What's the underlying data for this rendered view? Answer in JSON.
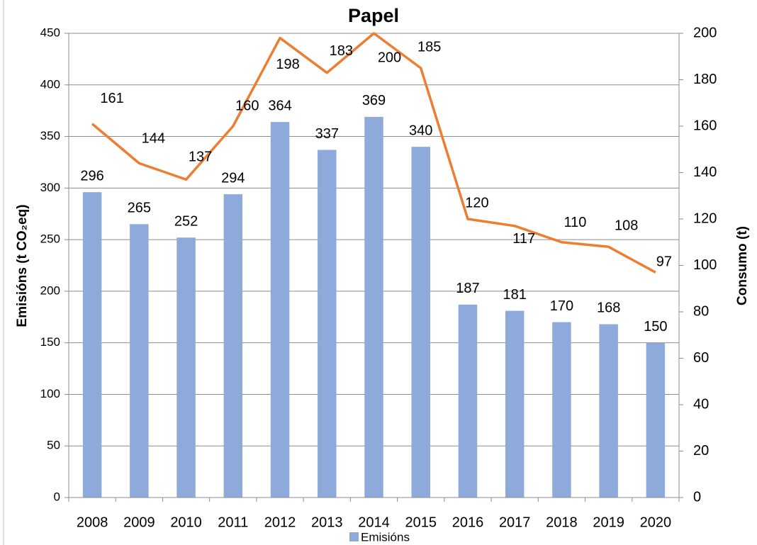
{
  "chart_data": {
    "type": "bar_line",
    "title": "Papel",
    "ylabel": "Emisións (t CO₂eq)",
    "y2label": "Consumo (t)",
    "categories": [
      "2008",
      "2009",
      "2010",
      "2011",
      "2012",
      "2013",
      "2014",
      "2015",
      "2016",
      "2017",
      "2018",
      "2019",
      "2020"
    ],
    "series": [
      {
        "name": "Emisións",
        "type": "bar",
        "color": "#8eaadb",
        "values": [
          296,
          265,
          252,
          294,
          364,
          337,
          369,
          340,
          187,
          181,
          170,
          168,
          150
        ]
      },
      {
        "type": "line",
        "axis": "y2",
        "color": "#ed7d31",
        "values": [
          161,
          144,
          137,
          160,
          198,
          183,
          200,
          185,
          120,
          117,
          110,
          108,
          97
        ]
      }
    ],
    "ylim": [
      0,
      450
    ],
    "yticks": [
      0,
      50,
      100,
      150,
      200,
      250,
      300,
      350,
      400,
      450
    ],
    "y2lim": [
      0,
      200
    ],
    "y2ticks": [
      0,
      20,
      40,
      60,
      80,
      100,
      120,
      140,
      160,
      180,
      200
    ],
    "grid": true,
    "legend": "bottom"
  }
}
